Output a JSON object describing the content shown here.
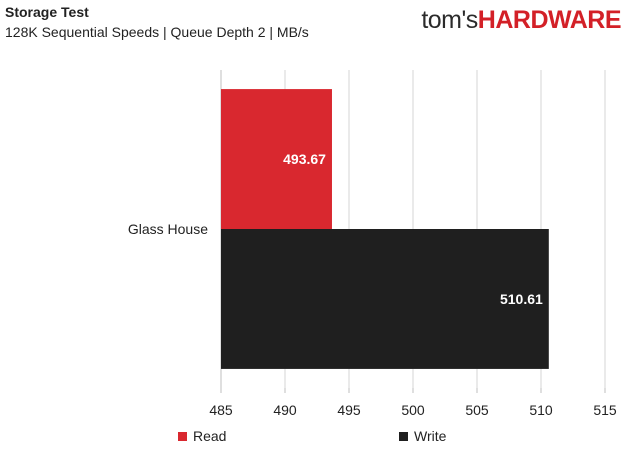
{
  "header": {
    "title": "Storage Test",
    "subtitle": "128K Sequential Speeds | Queue Depth 2 | MB/s",
    "logo_part1": "tom's",
    "logo_part2": "HARDWARE"
  },
  "colors": {
    "read": "#d9282f",
    "write": "#1f1f1f",
    "grid": "#d4d4d4",
    "axis": "#bfbfbf"
  },
  "chart_data": {
    "type": "bar",
    "orientation": "horizontal",
    "categories": [
      "Glass House"
    ],
    "series": [
      {
        "name": "Read",
        "values": [
          493.67
        ],
        "labels": [
          "493.67"
        ],
        "color": "#d9282f"
      },
      {
        "name": "Write",
        "values": [
          510.61
        ],
        "labels": [
          "510.61"
        ],
        "color": "#1f1f1f"
      }
    ],
    "xlim": [
      485,
      515
    ],
    "xticks": [
      485,
      490,
      495,
      500,
      505,
      510,
      515
    ],
    "tick_labels": [
      "485",
      "490",
      "495",
      "500",
      "505",
      "510",
      "515"
    ],
    "grid": true,
    "legend_position": "bottom"
  }
}
